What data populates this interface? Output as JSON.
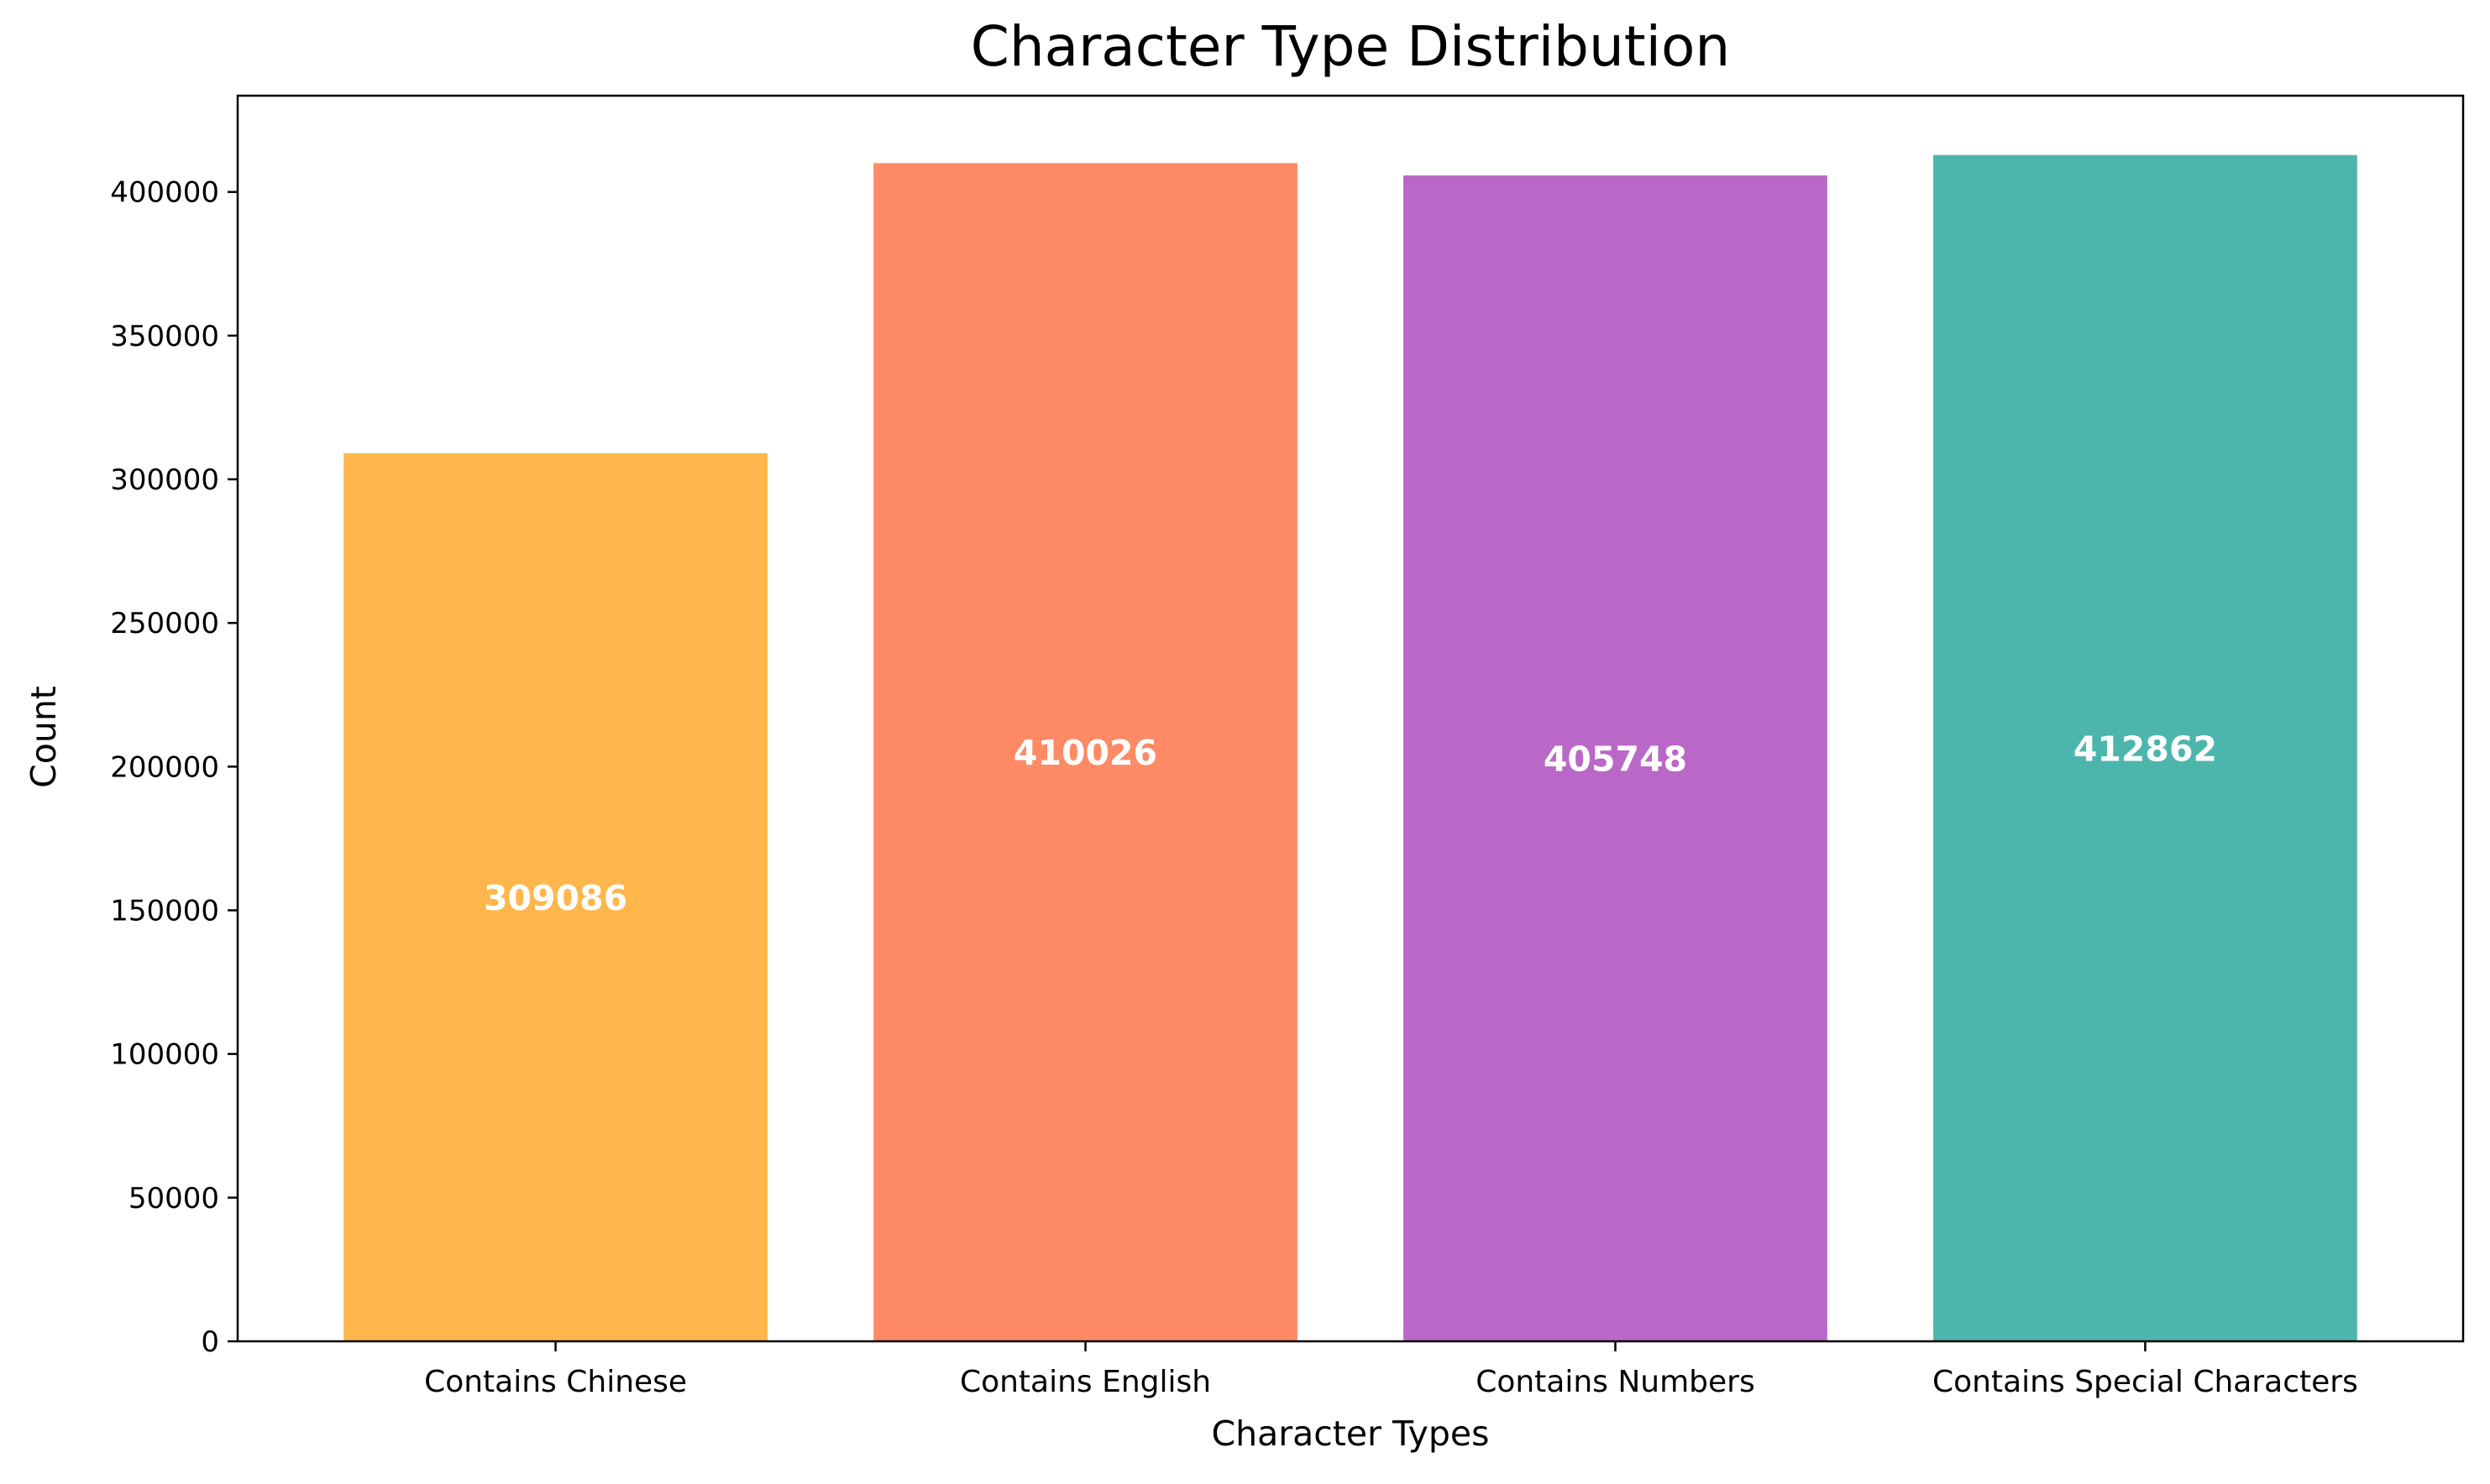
{
  "chart_data": {
    "type": "bar",
    "title": "Character Type Distribution",
    "xlabel": "Character Types",
    "ylabel": "Count",
    "categories": [
      "Contains Chinese",
      "Contains English",
      "Contains Numbers",
      "Contains Special Characters"
    ],
    "values": [
      309086,
      410026,
      405748,
      412862
    ],
    "value_labels": [
      "309086",
      "410026",
      "405748",
      "412862"
    ],
    "colors": [
      "#FFB74D",
      "#FF8A65",
      "#BA68C8",
      "#4DB6AC"
    ],
    "ylim": [
      0,
      433505
    ],
    "yticks": [
      0,
      50000,
      100000,
      150000,
      200000,
      250000,
      300000,
      350000,
      400000
    ],
    "ytick_labels": [
      "0",
      "50000",
      "100000",
      "150000",
      "200000",
      "250000",
      "300000",
      "350000",
      "400000"
    ],
    "grid": false,
    "legend": "none"
  }
}
